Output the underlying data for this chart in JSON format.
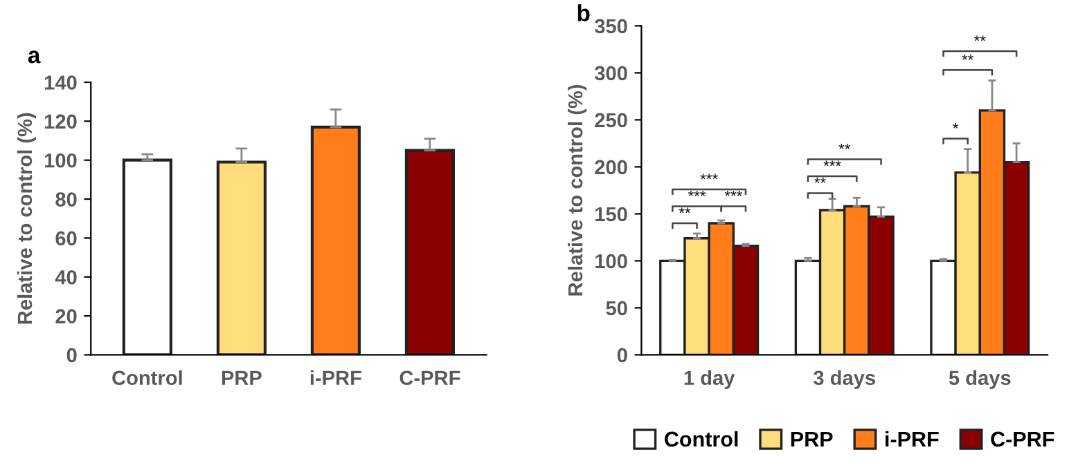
{
  "chart_data": [
    {
      "type": "bar",
      "title": "a",
      "ylabel": "Relative to control (%)",
      "categories": [
        "Control",
        "PRP",
        "i-PRF",
        "C-PRF"
      ],
      "values": [
        100,
        99,
        117,
        105
      ],
      "colors": [
        "#ffffff",
        "#fedd7a",
        "#ff7d1a",
        "#8b0000"
      ],
      "errors": [
        [
          100,
          103
        ],
        [
          99,
          106
        ],
        [
          117,
          126
        ],
        [
          105,
          111
        ]
      ],
      "ylim": [
        0,
        140
      ],
      "yticks": [
        0,
        20,
        40,
        60,
        80,
        100,
        120,
        140
      ],
      "grid": false
    },
    {
      "type": "bar",
      "title": "b",
      "ylabel": "Relative to control (%)",
      "categories": [
        "1 day",
        "3 days",
        "5 days"
      ],
      "series": [
        {
          "name": "Control",
          "color": "#ffffff",
          "values": [
            100,
            100,
            100
          ],
          "errors": [
            [
              100,
              101
            ],
            [
              100,
              103
            ],
            [
              100,
              102
            ]
          ]
        },
        {
          "name": "PRP",
          "color": "#fedd7a",
          "values": [
            124,
            154,
            194
          ],
          "errors": [
            [
              124,
              129
            ],
            [
              154,
              166
            ],
            [
              194,
              219
            ]
          ]
        },
        {
          "name": "i-PRF",
          "color": "#ff7d1a",
          "values": [
            140,
            158,
            260
          ],
          "errors": [
            [
              140,
              143
            ],
            [
              158,
              167
            ],
            [
              260,
              292
            ]
          ]
        },
        {
          "name": "C-PRF",
          "color": "#8b0000",
          "values": [
            116,
            147,
            205
          ],
          "errors": [
            [
              116,
              118
            ],
            [
              147,
              157
            ],
            [
              205,
              225
            ]
          ]
        }
      ],
      "annotations": [
        "**",
        "***",
        "***",
        "***",
        "**",
        "***",
        "**",
        "*",
        "**",
        "**"
      ],
      "ylim": [
        0,
        350
      ],
      "yticks": [
        0,
        50,
        100,
        150,
        200,
        250,
        300,
        350
      ],
      "grid": false,
      "legend": "bottom"
    }
  ]
}
